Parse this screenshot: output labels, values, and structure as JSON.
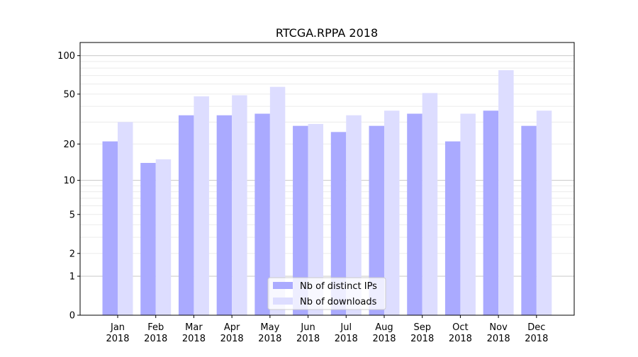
{
  "chart_data": {
    "type": "bar",
    "title": "RTCGA.RPPA 2018",
    "xlabel": "",
    "ylabel": "",
    "yscale": "symlog",
    "ylim": [
      0,
      120
    ],
    "yticks": [
      0,
      1,
      2,
      5,
      10,
      20,
      50,
      100
    ],
    "ytick_labels": [
      "0",
      "1",
      "2",
      "5",
      "10",
      "20",
      "50",
      "100"
    ],
    "grid": true,
    "legend_position": "lower center",
    "categories": [
      "Jan\n2018",
      "Feb\n2018",
      "Mar\n2018",
      "Apr\n2018",
      "May\n2018",
      "Jun\n2018",
      "Jul\n2018",
      "Aug\n2018",
      "Sep\n2018",
      "Oct\n2018",
      "Nov\n2018",
      "Dec\n2018"
    ],
    "series": [
      {
        "name": "Nb of distinct IPs",
        "color": "#aaaaff",
        "values": [
          21,
          14,
          34,
          34,
          35,
          28,
          25,
          28,
          35,
          21,
          37,
          28
        ]
      },
      {
        "name": "Nb of downloads",
        "color": "#ddddff",
        "values": [
          30,
          15,
          48,
          49,
          57,
          29,
          34,
          37,
          51,
          35,
          77,
          37
        ]
      }
    ]
  }
}
